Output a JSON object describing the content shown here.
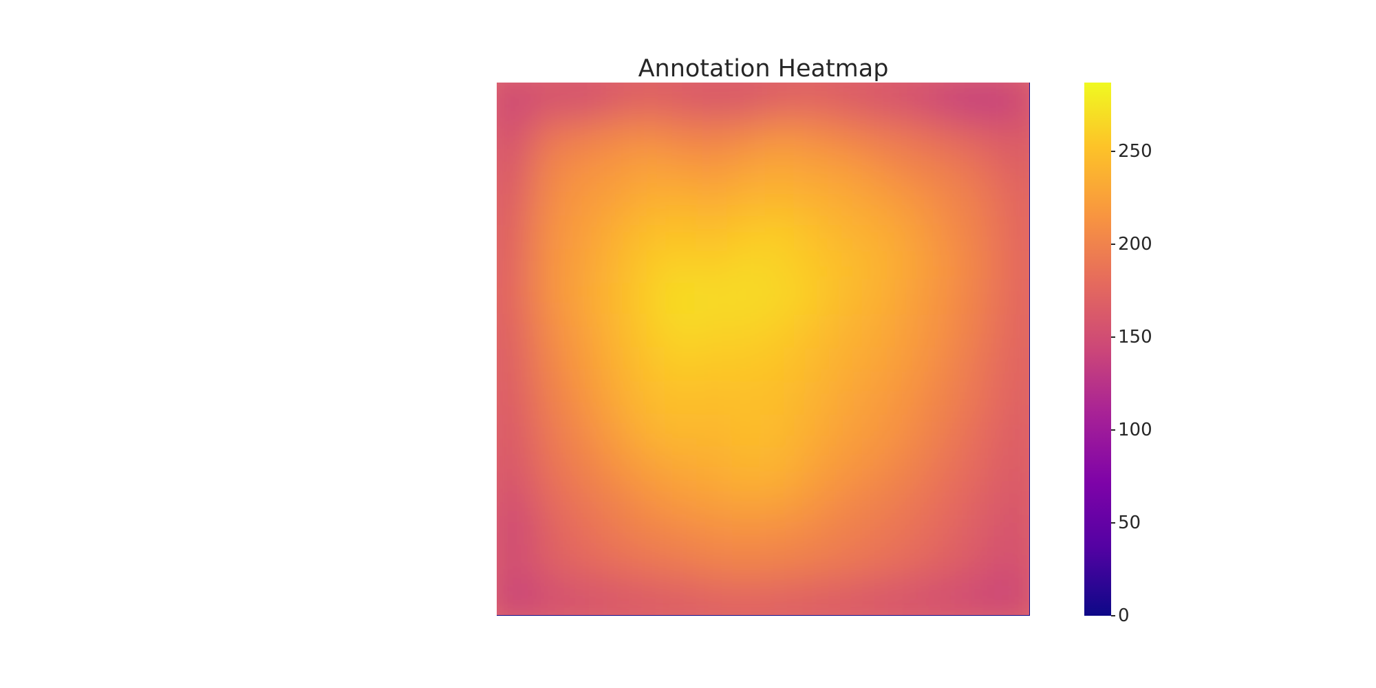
{
  "chart_data": {
    "type": "heatmap",
    "title": "Annotation Heatmap",
    "colormap": "plasma",
    "colorbar": {
      "min": 0,
      "max": 287,
      "ticks": [
        0,
        50,
        100,
        150,
        200,
        250
      ],
      "tick_labels": [
        "0",
        "50",
        "100",
        "150",
        "200",
        "250"
      ]
    },
    "grid": false,
    "rows": 16,
    "cols": 16,
    "z": [
      [
        140,
        155,
        148,
        162,
        170,
        165,
        158,
        160,
        168,
        172,
        165,
        158,
        150,
        140,
        132,
        138
      ],
      [
        150,
        185,
        192,
        200,
        205,
        198,
        195,
        200,
        210,
        205,
        198,
        190,
        185,
        175,
        168,
        160
      ],
      [
        158,
        200,
        210,
        215,
        225,
        220,
        215,
        225,
        230,
        225,
        220,
        210,
        200,
        195,
        185,
        170
      ],
      [
        165,
        205,
        218,
        225,
        235,
        238,
        232,
        240,
        242,
        238,
        232,
        225,
        215,
        205,
        195,
        178
      ],
      [
        170,
        210,
        222,
        235,
        248,
        252,
        248,
        255,
        258,
        250,
        240,
        235,
        225,
        210,
        198,
        180
      ],
      [
        172,
        212,
        225,
        240,
        255,
        262,
        258,
        265,
        262,
        255,
        248,
        240,
        228,
        215,
        200,
        182
      ],
      [
        175,
        210,
        228,
        242,
        258,
        270,
        268,
        268,
        265,
        258,
        245,
        238,
        225,
        212,
        198,
        180
      ],
      [
        170,
        205,
        222,
        240,
        255,
        265,
        262,
        262,
        258,
        250,
        240,
        232,
        222,
        210,
        195,
        178
      ],
      [
        168,
        200,
        218,
        235,
        250,
        258,
        255,
        255,
        252,
        245,
        235,
        228,
        218,
        205,
        190,
        175
      ],
      [
        165,
        195,
        212,
        230,
        245,
        250,
        248,
        250,
        248,
        240,
        230,
        222,
        212,
        200,
        188,
        172
      ],
      [
        162,
        190,
        205,
        222,
        238,
        245,
        242,
        248,
        245,
        235,
        225,
        218,
        208,
        195,
        182,
        168
      ],
      [
        158,
        185,
        198,
        212,
        225,
        232,
        235,
        242,
        240,
        228,
        218,
        210,
        200,
        188,
        178,
        165
      ],
      [
        150,
        178,
        190,
        200,
        212,
        220,
        225,
        230,
        228,
        218,
        208,
        200,
        192,
        182,
        172,
        160
      ],
      [
        142,
        170,
        182,
        192,
        200,
        205,
        210,
        212,
        210,
        205,
        198,
        192,
        185,
        176,
        166,
        155
      ],
      [
        148,
        168,
        175,
        182,
        188,
        192,
        198,
        200,
        198,
        195,
        190,
        185,
        178,
        170,
        162,
        150
      ],
      [
        135,
        150,
        155,
        160,
        165,
        168,
        172,
        175,
        172,
        170,
        165,
        160,
        155,
        150,
        145,
        140
      ]
    ]
  }
}
